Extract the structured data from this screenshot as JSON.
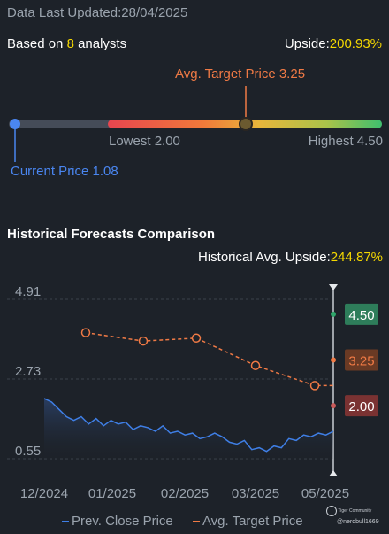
{
  "header": {
    "updated_label": "Data Last Updated:",
    "updated_date": "28/04/2025"
  },
  "analysts": {
    "prefix": "Based on ",
    "count": "8",
    "suffix": " analysts"
  },
  "upside": {
    "label": "Upside:",
    "value": "200.93%"
  },
  "range": {
    "avg_target_label": "Avg. Target Price 3.25",
    "lowest_label": "Lowest 2.00",
    "highest_label": "Highest 4.50",
    "current_label": "Current Price 1.08",
    "lowest": 2.0,
    "highest": 4.5,
    "avg_target": 3.25,
    "current": 1.08
  },
  "history": {
    "title": "Historical Forecasts Comparison",
    "avg_upside_label": "Historical Avg. Upside:",
    "avg_upside_value": "244.87%"
  },
  "legend": {
    "prev_close": "Prev. Close Price",
    "avg_target": "Avg. Target Price"
  },
  "watermark": {
    "brand": "Tiger Community",
    "user": "@nerdbull1669"
  },
  "colors": {
    "accent_yellow": "#f5d800",
    "target_orange": "#f07a45",
    "current_blue": "#4a86f0",
    "price_line": "#3f7fe6",
    "high_green": "#2e7d5a",
    "low_red": "#7a3232"
  },
  "chart_data": {
    "type": "line",
    "x_ticks": [
      "12/2024",
      "01/2025",
      "02/2025",
      "03/2025",
      "05/2025"
    ],
    "y_ticks": [
      "4.91",
      "2.73",
      "0.55"
    ],
    "ylim": [
      0.55,
      4.91
    ],
    "series": [
      {
        "name": "Prev. Close Price",
        "values": [
          2.2,
          2.1,
          1.9,
          1.7,
          1.6,
          1.7,
          1.5,
          1.65,
          1.45,
          1.6,
          1.5,
          1.55,
          1.35,
          1.45,
          1.4,
          1.3,
          1.45,
          1.25,
          1.3,
          1.2,
          1.25,
          1.1,
          1.15,
          1.25,
          1.15,
          1.0,
          0.95,
          1.05,
          0.8,
          0.85,
          0.75,
          0.9,
          0.85,
          1.1,
          1.05,
          1.2,
          1.15,
          1.25,
          1.2,
          1.3
        ]
      },
      {
        "name": "Avg. Target Price",
        "values": [
          4.0,
          3.77,
          3.85,
          3.1,
          2.55,
          2.55
        ]
      }
    ],
    "forecast": {
      "high": "4.50",
      "avg": "3.25",
      "low": "2.00"
    }
  }
}
